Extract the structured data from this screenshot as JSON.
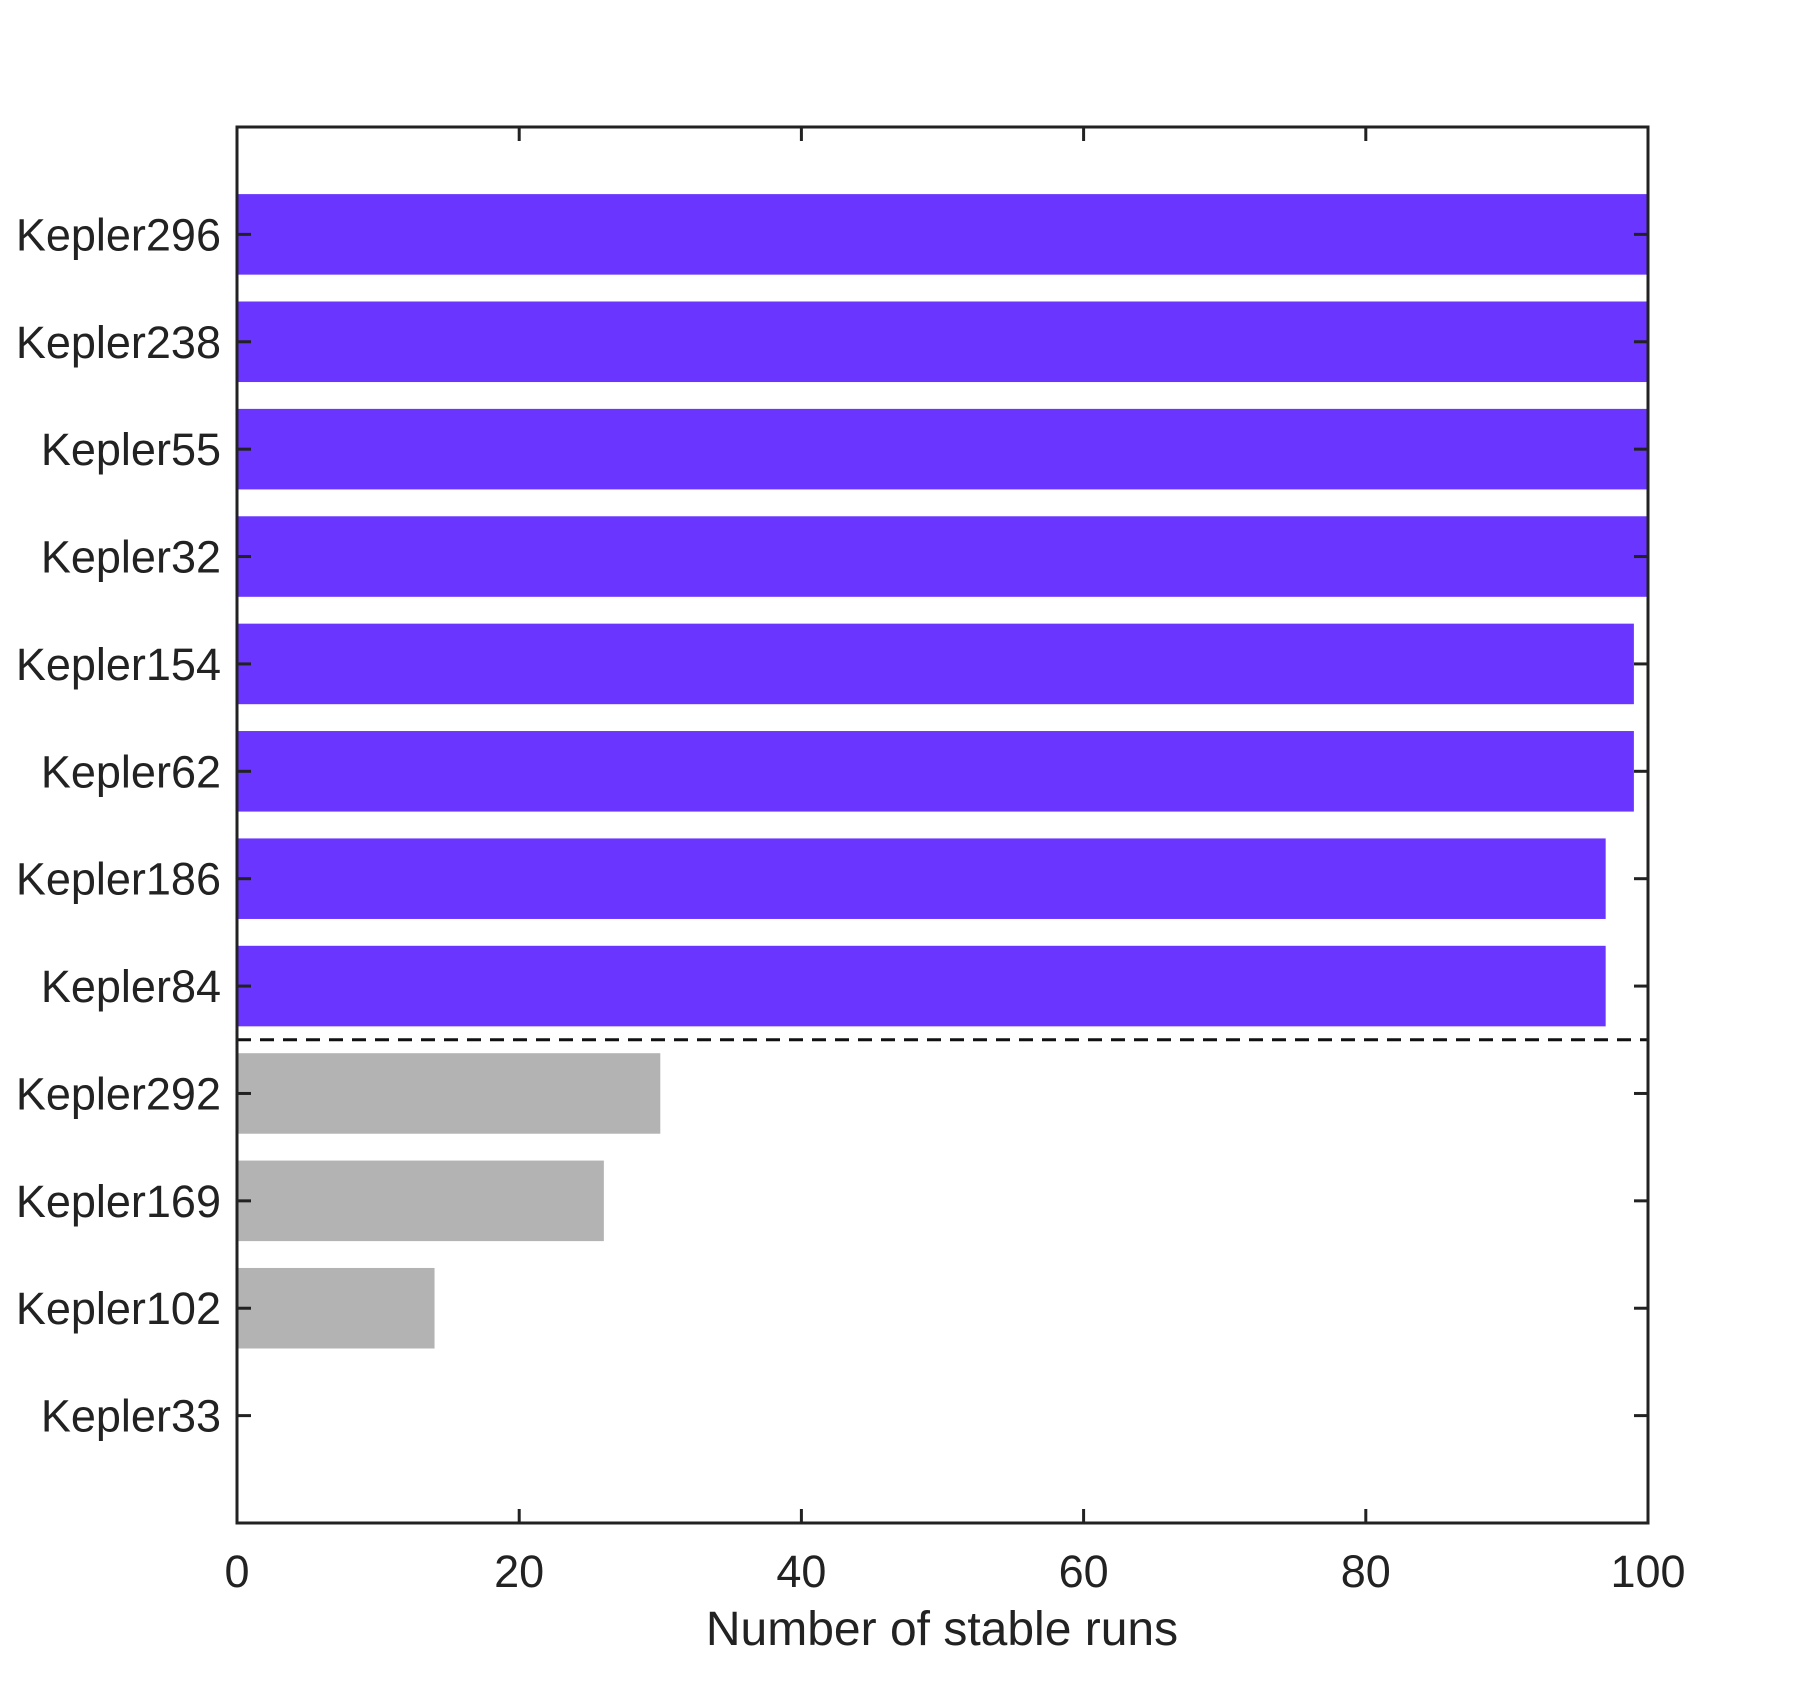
{
  "chart_data": {
    "type": "bar",
    "orientation": "horizontal",
    "title": "",
    "xlabel": "Number of stable runs",
    "ylabel": "",
    "xlim": [
      0,
      100
    ],
    "xticks": [
      "0",
      "20",
      "40",
      "60",
      "80",
      "100"
    ],
    "grid": false,
    "categories": [
      "Kepler296",
      "Kepler238",
      "Kepler55",
      "Kepler32",
      "Kepler154",
      "Kepler62",
      "Kepler186",
      "Kepler84",
      "Kepler292",
      "Kepler169",
      "Kepler102",
      "Kepler33"
    ],
    "values": [
      100,
      100,
      100,
      100,
      99,
      99,
      97,
      97,
      30,
      26,
      14,
      0
    ],
    "bar_colors": [
      "#6a36ff",
      "#6a36ff",
      "#6a36ff",
      "#6a36ff",
      "#6a36ff",
      "#6a36ff",
      "#6a36ff",
      "#6a36ff",
      "#b3b3b3",
      "#b3b3b3",
      "#b3b3b3",
      "#b3b3b3"
    ],
    "divider": {
      "style": "dashed",
      "between": [
        "Kepler84",
        "Kepler292"
      ]
    }
  }
}
